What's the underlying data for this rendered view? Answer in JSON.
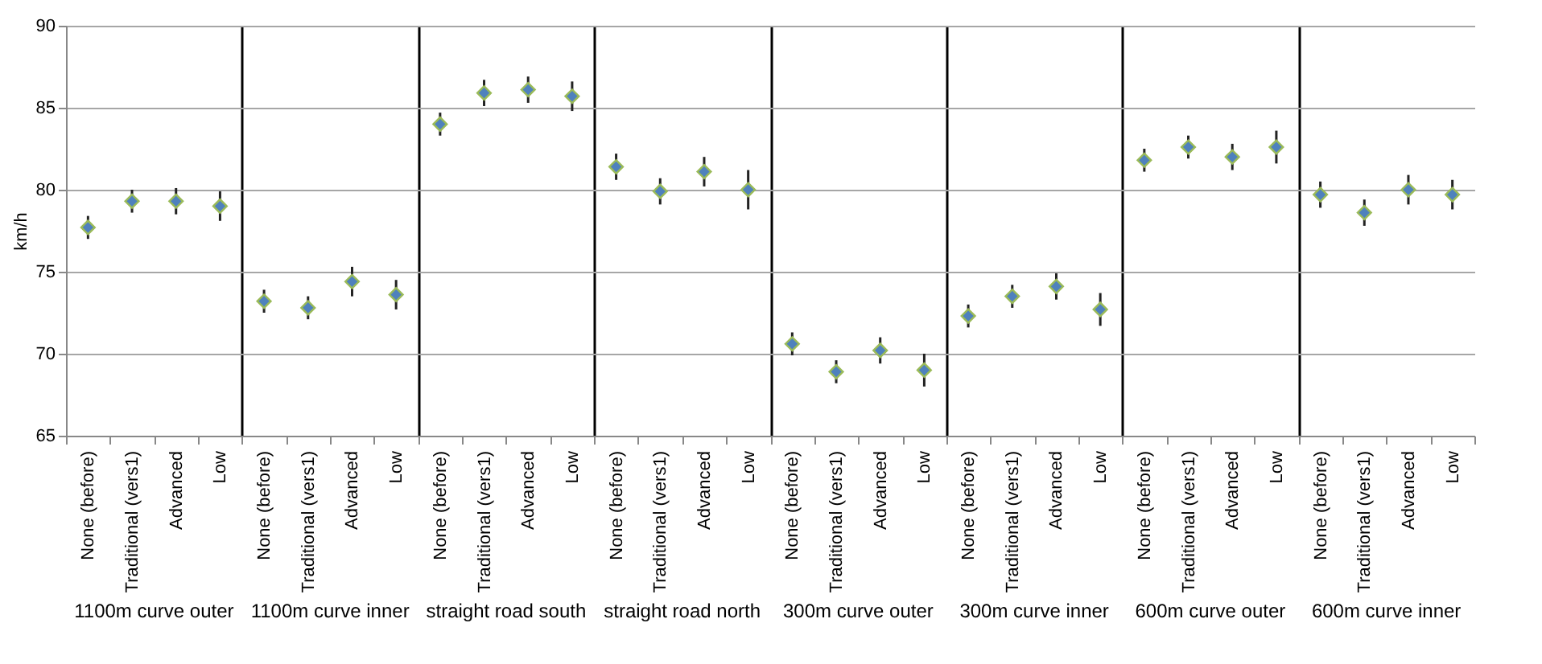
{
  "chart_data": {
    "type": "scatter",
    "ylabel": "km/h",
    "categories": [
      "None (before)",
      "Traditional (vers1)",
      "Advanced",
      "Low",
      "None (before)",
      "Traditional (vers1)",
      "Advanced",
      "Low",
      "None (before)",
      "Traditional (vers1)",
      "Advanced",
      "Low",
      "None (before)",
      "Traditional (vers1)",
      "Advanced",
      "Low",
      "None (before)",
      "Traditional (vers1)",
      "Advanced",
      "Low",
      "None (before)",
      "Traditional (vers1)",
      "Advanced",
      "Low",
      "None (before)",
      "Traditional (vers1)",
      "Advanced",
      "Low",
      "None (before)",
      "Traditional (vers1)",
      "Advanced",
      "Low"
    ],
    "series": [
      {
        "color": "#4f81bd",
        "values": [
          77.7,
          79.3,
          79.3,
          79.0,
          73.2,
          72.8,
          74.4,
          73.6,
          84.0,
          85.9,
          86.1,
          85.7,
          81.4,
          79.9,
          81.1,
          80.0,
          70.6,
          68.9,
          70.2,
          69.0,
          72.3,
          73.5,
          74.1,
          72.7,
          81.8,
          82.6,
          82.0,
          82.6,
          79.7,
          78.6,
          80.0,
          79.7
        ],
        "errors": [
          0.7,
          0.7,
          0.8,
          0.9,
          0.7,
          0.7,
          0.9,
          0.9,
          0.7,
          0.8,
          0.8,
          0.9,
          0.8,
          0.8,
          0.9,
          1.2,
          0.7,
          0.7,
          0.8,
          1.0,
          0.7,
          0.7,
          0.8,
          1.0,
          0.7,
          0.7,
          0.8,
          1.0,
          0.8,
          0.8,
          0.9,
          0.9
        ]
      }
    ],
    "annotations": [
      "1100m curve outer",
      "1100m curve inner",
      "straight road south",
      "straight road north",
      "300m curve outer",
      "300m curve inner",
      "600m curve outer",
      "600m curve inner"
    ],
    "ylim": [
      65,
      90
    ],
    "yticks": [
      65,
      70,
      75,
      80,
      85,
      90
    ],
    "grid": "y",
    "marker": "diamond"
  }
}
